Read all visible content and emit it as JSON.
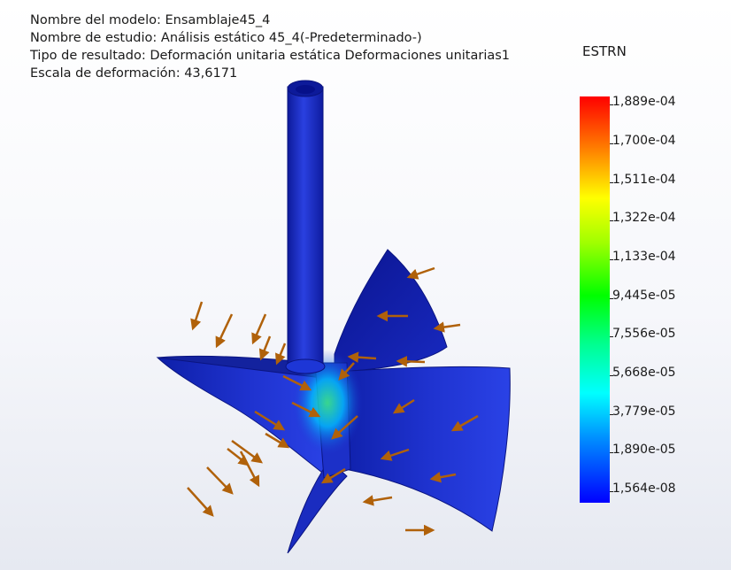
{
  "info": {
    "model_name": "Nombre del modelo: Ensamblaje45_4",
    "study_name": "Nombre de estudio: Análisis estático 45_4(-Predeterminado-)",
    "result_type": "Tipo de resultado: Deformación unitaria estática Deformaciones unitarias1",
    "deformation_scale": "Escala de deformación: 43,6171"
  },
  "legend": {
    "title": "ESTRN",
    "ticks": [
      "1,889e-04",
      "1,700e-04",
      "1,511e-04",
      "1,322e-04",
      "1,133e-04",
      "9,445e-05",
      "7,556e-05",
      "5,668e-05",
      "3,779e-05",
      "1,890e-05",
      "1,564e-08"
    ],
    "color_max": "#ff0000",
    "color_min": "#0000ff"
  },
  "model": {
    "body_color": "#1d2fc8",
    "load_arrow_color": "#b0610a"
  }
}
